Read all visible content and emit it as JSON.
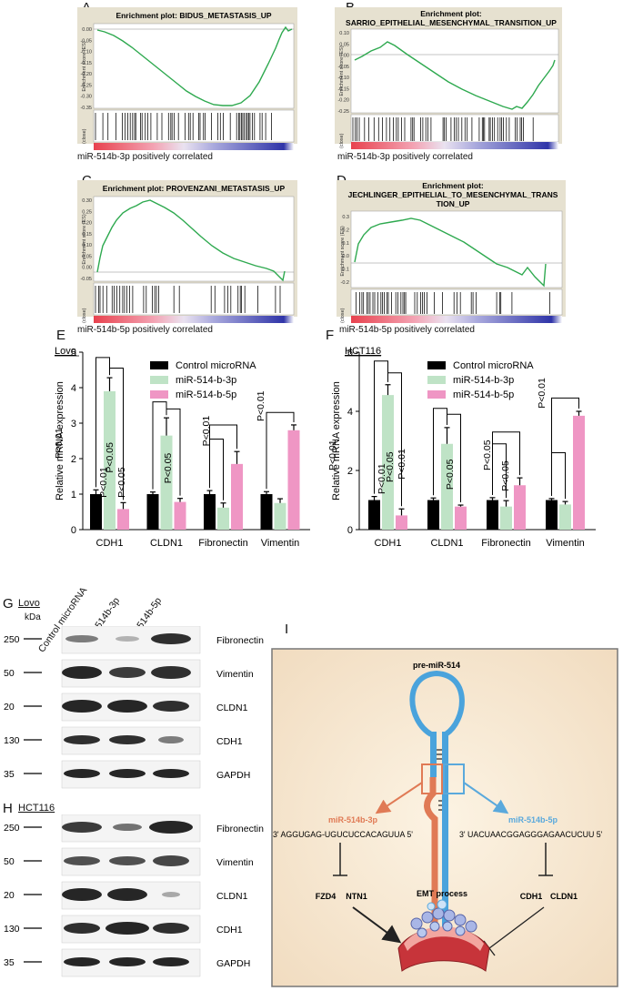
{
  "panels": {
    "A": {
      "letter": "A",
      "title_lines": [
        "Enrichment plot: BIDUS_METASTASIS_UP"
      ],
      "yticks": [
        "0.00",
        "-0.05",
        "-0.10",
        "-0.15",
        "-0.20",
        "-0.25",
        "-0.30",
        "-0.35"
      ],
      "ylabel": "Enrichment score (ES)",
      "rank_label": "(close)",
      "caption": "miR-514b-3p positively correlated"
    },
    "B": {
      "letter": "B",
      "title_lines": [
        "Enrichment plot:",
        "SARRIO_EPITHELIAL_MESENCHYMAL_TRANSITION_UP"
      ],
      "yticks": [
        "0.10",
        "0.05",
        "0.00",
        "-0.05",
        "-0.10",
        "-0.15",
        "-0.20",
        "-0.25"
      ],
      "ylabel": "Enrichment score (ES)",
      "rank_label": "(close)",
      "caption": "miR-514b-3p positively correlated"
    },
    "C": {
      "letter": "C",
      "title_lines": [
        "Enrichment plot: PROVENZANI_METASTASIS_UP"
      ],
      "yticks": [
        "0.30",
        "0.25",
        "0.20",
        "0.15",
        "0.10",
        "0.05",
        "0.00",
        "-0.05"
      ],
      "ylabel": "Enrichment score (ES)",
      "rank_label": "(close)",
      "caption": "miR-514b-5p positively correlated"
    },
    "D": {
      "letter": "D",
      "title_lines": [
        "Enrichment plot:",
        "JECHLINGER_EPITHELIAL_TO_MESENCHYMAL_TRANS",
        "TION_UP"
      ],
      "yticks": [
        "0.3",
        "0.2",
        "0.1",
        "0.0",
        "-0.1",
        "-0.2"
      ],
      "ylabel": "Enrichment score (ES)",
      "rank_label": "(close)",
      "caption": "miR-514b-5p positively correlated"
    }
  },
  "chart_data": [
    {
      "type": "bar",
      "panel": "E",
      "cell_line": "Lovo",
      "ylabel": "Relative mRNA expression",
      "ylim": [
        0,
        5
      ],
      "yticks": [
        "0",
        "1",
        "2",
        "3",
        "4",
        "5"
      ],
      "categories": [
        "CDH1",
        "CLDN1",
        "Fibronectin",
        "Vimentin"
      ],
      "series": [
        {
          "name": "Control microRNA",
          "color": "#000000",
          "values": [
            1.0,
            1.0,
            1.0,
            1.0
          ],
          "errors": [
            0.12,
            0.06,
            0.1,
            0.07
          ]
        },
        {
          "name": "miR-514-b-3p",
          "color": "#bfe3c6",
          "values": [
            3.9,
            2.65,
            0.62,
            0.75
          ],
          "errors": [
            0.38,
            0.5,
            0.13,
            0.12
          ]
        },
        {
          "name": "miR-514-b-5p",
          "color": "#ef96c4",
          "values": [
            0.58,
            0.78,
            1.85,
            2.8
          ],
          "errors": [
            0.18,
            0.1,
            0.35,
            0.15
          ]
        }
      ],
      "annotations": [
        "P<0.01",
        "P<0.01",
        "P<0.05",
        "P<0.05",
        "P<0.05",
        "P<0.01",
        "P<0.01"
      ]
    },
    {
      "type": "bar",
      "panel": "F",
      "cell_line": "HCT116",
      "ylabel": "Relative mRNA expression",
      "ylim": [
        0,
        6
      ],
      "yticks": [
        "0",
        "2",
        "4",
        "6"
      ],
      "categories": [
        "CDH1",
        "CLDN1",
        "Fibronectin",
        "Vimentin"
      ],
      "series": [
        {
          "name": "Control microRNA",
          "color": "#000000",
          "values": [
            1.0,
            1.0,
            1.0,
            1.0
          ],
          "errors": [
            0.12,
            0.07,
            0.08,
            0.05
          ]
        },
        {
          "name": "miR-514-b-3p",
          "color": "#bfe3c6",
          "values": [
            4.55,
            2.9,
            0.78,
            0.85
          ],
          "errors": [
            0.35,
            0.55,
            0.2,
            0.1
          ]
        },
        {
          "name": "miR-514-b-5p",
          "color": "#ef96c4",
          "values": [
            0.48,
            0.78,
            1.5,
            3.85
          ],
          "errors": [
            0.22,
            0.05,
            0.25,
            0.15
          ]
        }
      ],
      "annotations": [
        "P<0.01",
        "P<0.01",
        "P<0.05",
        "P<0.01",
        "P<0.05",
        "P<0.05",
        "P<0.05",
        "P<0.01"
      ]
    }
  ],
  "westerns": {
    "G": {
      "letter": "G",
      "cell_line": "Lovo",
      "kda": "kDa",
      "lanes": [
        "Control microRNA",
        "miR-514b-3p",
        "miR-514b-5p"
      ],
      "rows": [
        {
          "marker": "250",
          "protein": "Fibronectin"
        },
        {
          "marker": "50",
          "protein": "Vimentin"
        },
        {
          "marker": "20",
          "protein": "CLDN1"
        },
        {
          "marker": "130",
          "protein": "CDH1"
        },
        {
          "marker": "35",
          "protein": "GAPDH"
        }
      ]
    },
    "H": {
      "letter": "H",
      "cell_line": "HCT116",
      "rows": [
        {
          "marker": "250",
          "protein": "Fibronectin"
        },
        {
          "marker": "50",
          "protein": "Vimentin"
        },
        {
          "marker": "20",
          "protein": "CLDN1"
        },
        {
          "marker": "130",
          "protein": "CDH1"
        },
        {
          "marker": "35",
          "protein": "GAPDH"
        }
      ]
    }
  },
  "diagram": {
    "letter": "I",
    "precursor": "pre-miR-514",
    "arm_3p": "miR-514b-3p",
    "seq_3p": "3' AGGUGAG-UGUCUCCACAGUUA 5'",
    "arm_5p": "miR-514b-5p",
    "seq_5p": "3' UACUAACGGAGGGAGAACUCUU 5'",
    "targets_3p": [
      "FZD4",
      "NTN1"
    ],
    "targets_5p": [
      "CDH1",
      "CLDN1"
    ],
    "process": "EMT process",
    "color_3p": "#e07a55",
    "color_5p": "#5aa9dc"
  }
}
